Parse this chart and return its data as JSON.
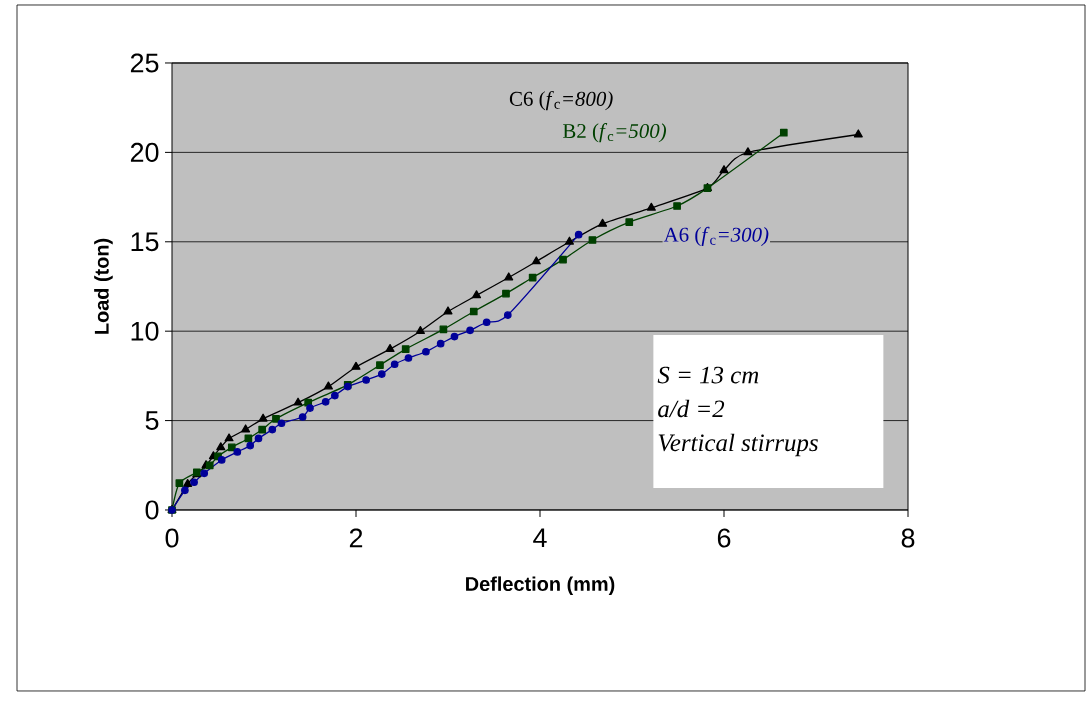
{
  "chart_data": {
    "type": "line",
    "xlabel": "Deflection (mm)",
    "ylabel": "Load (ton)",
    "xlim": [
      0,
      8
    ],
    "ylim": [
      0,
      25
    ],
    "xticks": [
      0,
      2,
      4,
      6,
      8
    ],
    "yticks": [
      0,
      5,
      10,
      15,
      20,
      25
    ],
    "grid": "y",
    "line_style": "solid",
    "series": [
      {
        "name": "C6 (*f*$_{c}$*=800)*",
        "color": "#000000",
        "marker": "triangle",
        "x": [
          0,
          0.17,
          0.27,
          0.37,
          0.45,
          0.53,
          0.62,
          0.8,
          0.99,
          1.37,
          1.7,
          2.0,
          2.37,
          2.7,
          3.0,
          3.31,
          3.66,
          3.96,
          4.32,
          4.68,
          5.21,
          5.82,
          6.0,
          6.26,
          7.46
        ],
        "values": [
          0,
          1.45,
          2.0,
          2.5,
          3.0,
          3.5,
          4.0,
          4.5,
          5.1,
          6.0,
          6.9,
          8.0,
          9.0,
          10.0,
          11.1,
          12.0,
          13.0,
          13.9,
          15.0,
          16.0,
          16.9,
          18.0,
          19.0,
          20.0,
          21.0
        ]
      },
      {
        "name": "B2 (*f*$_{c}$*=500)*",
        "color": "#004000",
        "marker": "square",
        "x": [
          0,
          0.08,
          0.27,
          0.41,
          0.5,
          0.65,
          0.83,
          0.98,
          1.13,
          1.48,
          1.91,
          2.26,
          2.54,
          2.95,
          3.28,
          3.63,
          3.92,
          4.25,
          4.57,
          4.97,
          5.49,
          5.82,
          6.65
        ],
        "values": [
          0,
          1.5,
          2.1,
          2.5,
          3.0,
          3.5,
          4.0,
          4.5,
          5.1,
          6.0,
          7.0,
          8.1,
          9.0,
          10.1,
          11.1,
          12.1,
          13.0,
          14.0,
          15.1,
          16.1,
          17.0,
          18.0,
          21.1
        ]
      },
      {
        "name": "A6 (*f*$_{c}$*=300)*",
        "color": "#000099",
        "marker": "circle",
        "x": [
          0,
          0.14,
          0.24,
          0.35,
          0.54,
          0.71,
          0.85,
          0.94,
          1.09,
          1.19,
          1.42,
          1.5,
          1.67,
          1.77,
          1.91,
          2.11,
          2.28,
          2.42,
          2.57,
          2.76,
          2.92,
          3.07,
          3.24,
          3.42,
          3.65,
          4.42
        ],
        "values": [
          0,
          1.1,
          1.55,
          2.05,
          2.8,
          3.25,
          3.6,
          4.0,
          4.5,
          4.85,
          5.2,
          5.7,
          6.05,
          6.4,
          6.9,
          7.27,
          7.6,
          8.15,
          8.5,
          8.85,
          9.3,
          9.7,
          10.05,
          10.5,
          10.9,
          15.4
        ]
      }
    ],
    "annotations": [
      "S = 13 cm",
      "a/d =2",
      "Vertical stirrups"
    ]
  }
}
